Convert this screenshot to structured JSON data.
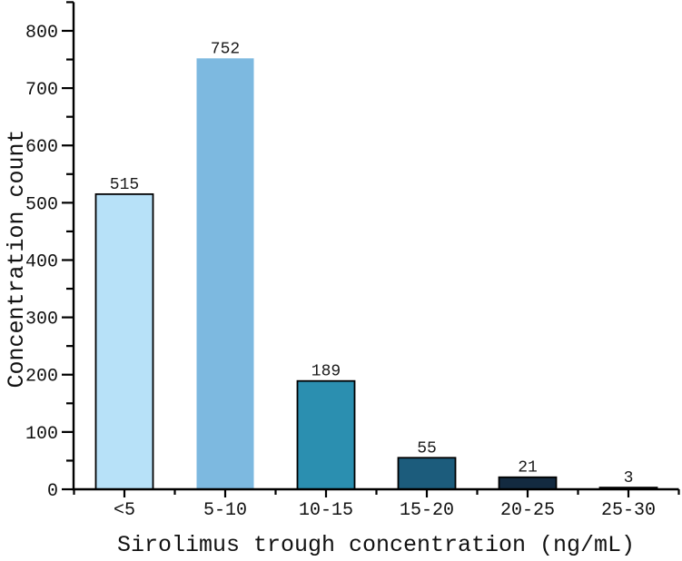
{
  "figure": {
    "background": "#ffffff"
  },
  "chart_data": {
    "type": "bar",
    "title": "",
    "xlabel": "Sirolimus trough concentration (ng/mL)",
    "ylabel": "Concentration count",
    "categories": [
      "<5",
      "5-10",
      "10-15",
      "15-20",
      "20-25",
      "25-30"
    ],
    "values": [
      515,
      752,
      189,
      55,
      21,
      3
    ],
    "value_labels": [
      "515",
      "752",
      "189",
      "55",
      "21",
      "3"
    ],
    "bar_fill_colors": [
      "#b7e1f8",
      "#7db9e0",
      "#2b8fb0",
      "#1c5c7c",
      "#132a40",
      "#0c1b2b"
    ],
    "bar_edge_colors": [
      "#000000",
      "none",
      "#000000",
      "#000000",
      "#000000",
      "#000000"
    ],
    "ylim": [
      0,
      850
    ],
    "ytick_interval_major": 100,
    "ytick_interval_minor": 50,
    "ytick_labels": [
      "0",
      "100",
      "200",
      "300",
      "400",
      "500",
      "600",
      "700",
      "800"
    ],
    "grid": false,
    "legend": "none",
    "axis_color": "#000000",
    "label_color": "#1a1a1a"
  }
}
